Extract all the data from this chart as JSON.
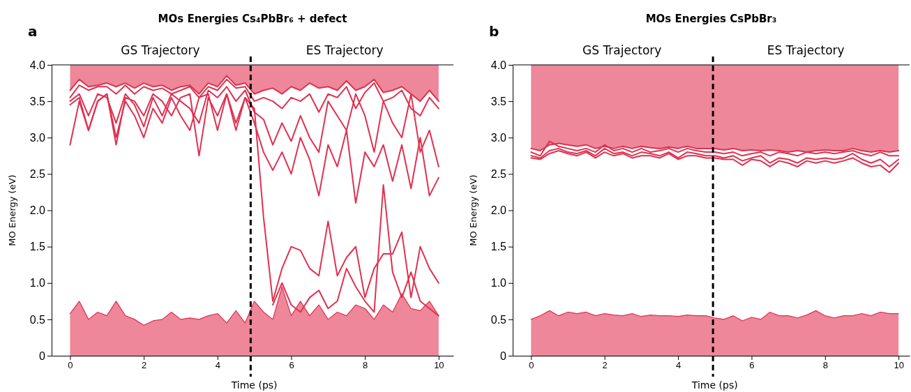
{
  "chart_data": [
    {
      "type": "line",
      "title": "MOs Energies Cs₄PbBr₆ + defect",
      "xlabel": "Time (ps)",
      "ylabel": "MO Energy (eV)",
      "annotations": [
        "a",
        "GS Trajectory",
        "ES Trajectory"
      ],
      "x": [
        0,
        0.25,
        0.5,
        0.75,
        1,
        1.25,
        1.5,
        1.75,
        2,
        2.25,
        2.5,
        2.75,
        3,
        3.25,
        3.5,
        3.75,
        4,
        4.25,
        4.5,
        4.75,
        5,
        5.25,
        5.5,
        5.75,
        6,
        6.25,
        6.5,
        6.75,
        7,
        7.25,
        7.5,
        7.75,
        8,
        8.25,
        8.5,
        8.75,
        9,
        9.25,
        9.5,
        9.75,
        10
      ],
      "xlim": [
        -0.5,
        10.4
      ],
      "xticks": [
        0,
        2,
        4,
        6,
        8,
        10
      ],
      "ylim": [
        0,
        4
      ],
      "yticks": [
        0,
        0.5,
        {
          "value": 1,
          "label": "1.0"
        },
        1.5,
        {
          "value": 2,
          "label": "2.0"
        },
        2.5,
        {
          "value": 3,
          "label": "3.0"
        },
        3.5,
        {
          "value": 4,
          "label": "4.0"
        }
      ],
      "line_style": "solid",
      "marker": "none",
      "ref_lines": [
        {
          "axis": "x",
          "value": 4.9,
          "color": "#000000",
          "line_style": "dashed"
        }
      ],
      "series": [
        {
          "type": "area",
          "color": "#e0304f",
          "values": [
            0.58,
            0.75,
            0.5,
            0.6,
            0.55,
            0.75,
            0.55,
            0.5,
            0.42,
            0.48,
            0.5,
            0.6,
            0.5,
            0.52,
            0.5,
            0.55,
            0.58,
            0.45,
            0.62,
            0.45,
            0.75,
            0.6,
            0.5,
            0.95,
            0.55,
            0.75,
            0.55,
            0.7,
            0.5,
            0.6,
            0.55,
            0.7,
            0.65,
            0.5,
            0.7,
            0.6,
            0.85,
            0.65,
            0.62,
            0.75,
            0.55
          ]
        },
        {
          "color": "#e0304f",
          "values": [
            3.65,
            3.8,
            3.7,
            3.72,
            3.75,
            3.7,
            3.75,
            3.68,
            3.75,
            3.7,
            3.72,
            3.65,
            3.7,
            3.72,
            3.6,
            3.75,
            3.7,
            3.85,
            3.72,
            3.75,
            3.6,
            3.65,
            3.68,
            3.6,
            3.7,
            3.65,
            3.75,
            3.68,
            3.7,
            3.65,
            3.78,
            3.65,
            3.7,
            3.8,
            3.62,
            3.65,
            3.7,
            3.6,
            3.5,
            3.65,
            3.5
          ],
          "lower": [
            3.65,
            3.8,
            3.7,
            3.72,
            3.75,
            3.7,
            3.75,
            3.68,
            3.75,
            3.7,
            3.72,
            3.65,
            3.7,
            3.72,
            3.6,
            3.75,
            3.7,
            3.85,
            3.72,
            3.75,
            3.6,
            3.65,
            3.68,
            3.6,
            3.7,
            3.65,
            3.75,
            3.68,
            3.7,
            3.65,
            3.78,
            3.65,
            3.7,
            3.8,
            3.62,
            3.65,
            3.7,
            3.6,
            3.5,
            3.65,
            3.5
          ],
          "upper": [
            4,
            4,
            4,
            4,
            4,
            4,
            4,
            4,
            4,
            4,
            4,
            4,
            4,
            4,
            4,
            4,
            4,
            4,
            4,
            4,
            4,
            4,
            4,
            4,
            4,
            4,
            4,
            4,
            4,
            4,
            4,
            4,
            4,
            4,
            4,
            4,
            4,
            4,
            4,
            4,
            4
          ]
        },
        {
          "color": "#e0304f",
          "values": [
            3.55,
            3.72,
            3.65,
            3.7,
            3.7,
            3.6,
            3.72,
            3.6,
            3.7,
            3.65,
            3.68,
            3.6,
            3.65,
            3.7,
            3.55,
            3.7,
            3.65,
            3.8,
            3.68,
            3.7,
            3.5,
            3.55,
            3.5,
            3.4,
            3.55,
            3.5,
            3.6,
            3.35,
            3.6,
            3.55,
            3.7,
            3.4,
            3.62,
            3.75,
            3.5,
            3.55,
            3.65,
            3.4,
            3.3,
            3.55,
            3.4
          ]
        },
        {
          "color": "#e0304f",
          "values": [
            3.5,
            3.6,
            3.3,
            3.6,
            3.55,
            3.2,
            3.6,
            3.45,
            3.15,
            3.55,
            3.3,
            3.6,
            3.5,
            3.4,
            3.2,
            3.65,
            3.55,
            3.7,
            3.5,
            3.65,
            3.35,
            3.25,
            2.9,
            3.2,
            2.95,
            3.3,
            3.0,
            2.8,
            3.5,
            3.3,
            3.1,
            3.6,
            3.3,
            2.8,
            3.5,
            3.2,
            3.0,
            3.6,
            2.8,
            3.1,
            2.6
          ]
        },
        {
          "color": "#e0304f",
          "values": [
            3.45,
            3.55,
            3.1,
            3.5,
            3.6,
            3.0,
            3.5,
            3.3,
            3.0,
            3.4,
            3.2,
            3.55,
            3.3,
            3.1,
            3.55,
            3.6,
            3.1,
            3.6,
            3.2,
            3.55,
            3.2,
            2.8,
            2.55,
            2.8,
            2.5,
            3.0,
            2.7,
            2.2,
            2.9,
            2.6,
            3.1,
            2.1,
            2.8,
            2.6,
            2.9,
            2.4,
            2.9,
            2.3,
            3.0,
            2.2,
            2.45
          ]
        },
        {
          "color": "#e0304f",
          "values": [
            2.9,
            3.5,
            3.1,
            3.5,
            3.6,
            2.9,
            3.55,
            3.5,
            3.3,
            3.6,
            3.5,
            3.3,
            3.55,
            3.6,
            2.75,
            3.55,
            3.3,
            3.6,
            3.1,
            3.55,
            3.4,
            1.9,
            0.75,
            1.2,
            1.5,
            1.45,
            1.2,
            1.1,
            1.85,
            1.1,
            1.35,
            1.5,
            0.8,
            1.2,
            1.4,
            1.4,
            1.7,
            0.8,
            1.5,
            1.2,
            1.0
          ]
        },
        {
          "color": "#e0304f",
          "values": [
            null,
            null,
            null,
            null,
            null,
            null,
            null,
            null,
            null,
            null,
            null,
            null,
            null,
            null,
            null,
            null,
            null,
            null,
            null,
            null,
            null,
            null,
            0.7,
            1.0,
            0.7,
            0.6,
            0.8,
            0.9,
            0.65,
            0.75,
            1.2,
            0.95,
            0.75,
            0.6,
            2.35,
            1.15,
            0.8,
            1.15,
            0.75,
            0.65,
            0.55
          ]
        }
      ]
    },
    {
      "type": "line",
      "title": "MOs Energies CsPbBr₃",
      "xlabel": "Time (ps)",
      "ylabel": "MO Energy (eV)",
      "annotations": [
        "b",
        "GS Trajectory",
        "ES Trajectory"
      ],
      "x": [
        0,
        0.25,
        0.5,
        0.75,
        1,
        1.25,
        1.5,
        1.75,
        2,
        2.25,
        2.5,
        2.75,
        3,
        3.25,
        3.5,
        3.75,
        4,
        4.25,
        4.5,
        4.75,
        5,
        5.25,
        5.5,
        5.75,
        6,
        6.25,
        6.5,
        6.75,
        7,
        7.25,
        7.5,
        7.75,
        8,
        8.25,
        8.5,
        8.75,
        9,
        9.25,
        9.5,
        9.75,
        10
      ],
      "xlim": [
        -0.5,
        10.3
      ],
      "xticks": [
        0,
        2,
        4,
        6,
        8,
        10
      ],
      "ylim": [
        0,
        4
      ],
      "yticks": [
        0,
        0.5,
        {
          "value": 1,
          "label": "1.0"
        },
        1.5,
        {
          "value": 2,
          "label": "2.0"
        },
        2.5,
        {
          "value": 3,
          "label": "3.0"
        },
        3.5,
        {
          "value": 4,
          "label": "4.0"
        }
      ],
      "line_style": "solid",
      "marker": "none",
      "ref_lines": [
        {
          "axis": "x",
          "value": 4.95,
          "color": "#000000",
          "line_style": "dashed"
        }
      ],
      "series": [
        {
          "type": "area",
          "color": "#e0304f",
          "values": [
            0.5,
            0.55,
            0.62,
            0.55,
            0.6,
            0.58,
            0.6,
            0.55,
            0.58,
            0.56,
            0.55,
            0.58,
            0.54,
            0.56,
            0.55,
            0.55,
            0.54,
            0.56,
            0.55,
            0.55,
            0.52,
            0.5,
            0.55,
            0.48,
            0.53,
            0.5,
            0.6,
            0.55,
            0.55,
            0.52,
            0.56,
            0.62,
            0.55,
            0.52,
            0.55,
            0.55,
            0.58,
            0.55,
            0.6,
            0.58,
            0.58
          ]
        },
        {
          "color": "#e0304f",
          "values": [
            2.85,
            2.82,
            2.9,
            2.92,
            2.9,
            2.88,
            2.9,
            2.85,
            2.88,
            2.85,
            2.88,
            2.85,
            2.88,
            2.86,
            2.85,
            2.87,
            2.85,
            2.88,
            2.85,
            2.85,
            2.85,
            2.83,
            2.85,
            2.82,
            2.83,
            2.82,
            2.83,
            2.82,
            2.8,
            2.82,
            2.8,
            2.82,
            2.83,
            2.82,
            2.82,
            2.85,
            2.82,
            2.8,
            2.82,
            2.8,
            2.82
          ],
          "lower": [
            2.85,
            2.82,
            2.9,
            2.92,
            2.9,
            2.88,
            2.9,
            2.85,
            2.88,
            2.85,
            2.88,
            2.85,
            2.88,
            2.86,
            2.85,
            2.87,
            2.85,
            2.88,
            2.85,
            2.85,
            2.85,
            2.83,
            2.85,
            2.82,
            2.83,
            2.82,
            2.83,
            2.82,
            2.8,
            2.82,
            2.8,
            2.82,
            2.83,
            2.82,
            2.82,
            2.85,
            2.82,
            2.8,
            2.82,
            2.8,
            2.82
          ],
          "upper": [
            4,
            4,
            4,
            4,
            4,
            4,
            4,
            4,
            4,
            4,
            4,
            4,
            4,
            4,
            4,
            4,
            4,
            4,
            4,
            4,
            4,
            4,
            4,
            4,
            4,
            4,
            4,
            4,
            4,
            4,
            4,
            4,
            4,
            4,
            4,
            4,
            4,
            4,
            4,
            4,
            4
          ]
        },
        {
          "color": "#e0304f",
          "values": [
            2.8,
            2.75,
            2.95,
            2.88,
            2.85,
            2.82,
            2.85,
            2.8,
            2.9,
            2.82,
            2.85,
            2.8,
            2.85,
            2.8,
            2.82,
            2.85,
            2.8,
            2.85,
            2.82,
            2.8,
            2.8,
            2.78,
            2.8,
            2.75,
            2.78,
            2.8,
            2.75,
            2.8,
            2.78,
            2.75,
            2.8,
            2.78,
            2.8,
            2.78,
            2.8,
            2.82,
            2.78,
            2.75,
            2.8,
            2.75,
            2.75
          ]
        },
        {
          "color": "#e0304f",
          "values": [
            2.75,
            2.72,
            2.82,
            2.85,
            2.8,
            2.78,
            2.82,
            2.75,
            2.85,
            2.78,
            2.8,
            2.75,
            2.8,
            2.78,
            2.75,
            2.8,
            2.72,
            2.8,
            2.78,
            2.75,
            2.75,
            2.72,
            2.75,
            2.68,
            2.72,
            2.75,
            2.65,
            2.72,
            2.7,
            2.65,
            2.72,
            2.7,
            2.72,
            2.7,
            2.72,
            2.78,
            2.7,
            2.65,
            2.7,
            2.6,
            2.7
          ]
        },
        {
          "color": "#e0304f",
          "values": [
            2.72,
            2.7,
            2.78,
            2.82,
            2.78,
            2.75,
            2.8,
            2.72,
            2.8,
            2.75,
            2.78,
            2.72,
            2.75,
            2.75,
            2.72,
            2.78,
            2.7,
            2.75,
            2.75,
            2.72,
            2.72,
            2.7,
            2.7,
            2.62,
            2.7,
            2.68,
            2.6,
            2.68,
            2.65,
            2.6,
            2.68,
            2.65,
            2.68,
            2.65,
            2.68,
            2.72,
            2.65,
            2.6,
            2.62,
            2.52,
            2.65
          ]
        }
      ]
    }
  ]
}
